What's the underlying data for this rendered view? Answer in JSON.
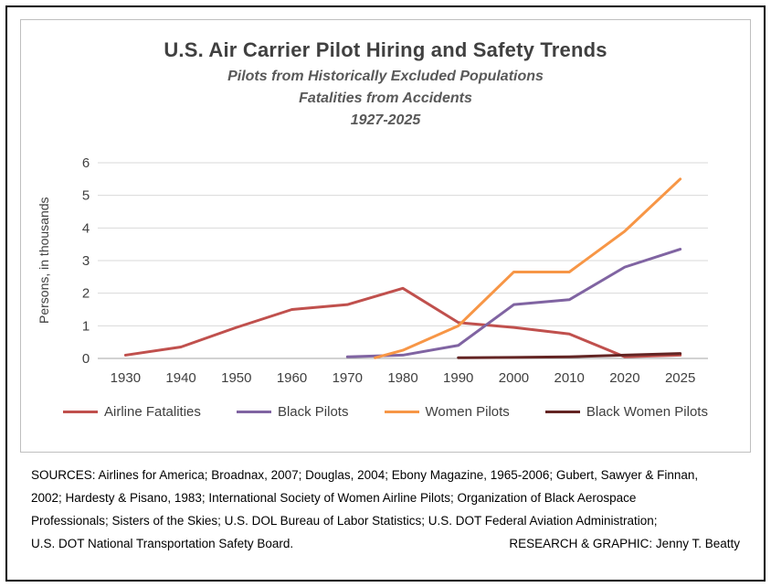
{
  "chart_data": {
    "type": "line",
    "title": "U.S. Air Carrier Pilot Hiring and Safety Trends",
    "subtitle_lines": [
      "Pilots from Historically Excluded Populations",
      "Fatalities from Accidents",
      "1927-2025"
    ],
    "ylabel": "Persons, in thousands",
    "xlabel": "",
    "ylim": [
      0,
      6
    ],
    "yticks": [
      0,
      1,
      2,
      3,
      4,
      5,
      6
    ],
    "categories": [
      "1930",
      "1940",
      "1950",
      "1960",
      "1970",
      "1980",
      "1990",
      "2000",
      "2010",
      "2020",
      "2025"
    ],
    "grid": true,
    "legend_position": "bottom",
    "gridline_color": "#d9d9d9",
    "axis_line_color": "#a6a6a6",
    "series": [
      {
        "name": "Airline Fatalities",
        "color": "#C0504D",
        "points": [
          [
            1930,
            0.1
          ],
          [
            1940,
            0.35
          ],
          [
            1950,
            0.95
          ],
          [
            1960,
            1.5
          ],
          [
            1970,
            1.65
          ],
          [
            1980,
            2.15
          ],
          [
            1990,
            1.1
          ],
          [
            2000,
            0.95
          ],
          [
            2010,
            0.75
          ],
          [
            2020,
            0.05
          ],
          [
            2025,
            0.1
          ]
        ]
      },
      {
        "name": "Black Pilots",
        "color": "#8064A2",
        "points": [
          [
            1970,
            0.05
          ],
          [
            1980,
            0.1
          ],
          [
            1990,
            0.4
          ],
          [
            2000,
            1.65
          ],
          [
            2010,
            1.8
          ],
          [
            2020,
            2.8
          ],
          [
            2025,
            3.35
          ]
        ]
      },
      {
        "name": "Women Pilots",
        "color": "#F79646",
        "points": [
          [
            1975,
            0.02
          ],
          [
            1980,
            0.25
          ],
          [
            1990,
            1.0
          ],
          [
            2000,
            2.65
          ],
          [
            2010,
            2.65
          ],
          [
            2020,
            3.9
          ],
          [
            2025,
            5.5
          ]
        ]
      },
      {
        "name": "Black Women Pilots",
        "color": "#632423",
        "points": [
          [
            1990,
            0.02
          ],
          [
            2000,
            0.03
          ],
          [
            2010,
            0.05
          ],
          [
            2020,
            0.1
          ],
          [
            2025,
            0.15
          ]
        ]
      }
    ]
  },
  "sources": {
    "lines": [
      "SOURCES: Airlines for America; Broadnax, 2007; Douglas, 2004; Ebony Magazine, 1965-2006; Gubert, Sawyer & Finnan,",
      "2002; Hardesty & Pisano, 1983; International Society of Women Airline Pilots; Organization of Black Aerospace",
      "Professionals; Sisters of the Skies; U.S. DOL Bureau of Labor Statistics; U.S. DOT Federal Aviation Administration;",
      "U.S. DOT National Transportation Safety Board."
    ],
    "credit": "RESEARCH & GRAPHIC: Jenny T. Beatty"
  }
}
